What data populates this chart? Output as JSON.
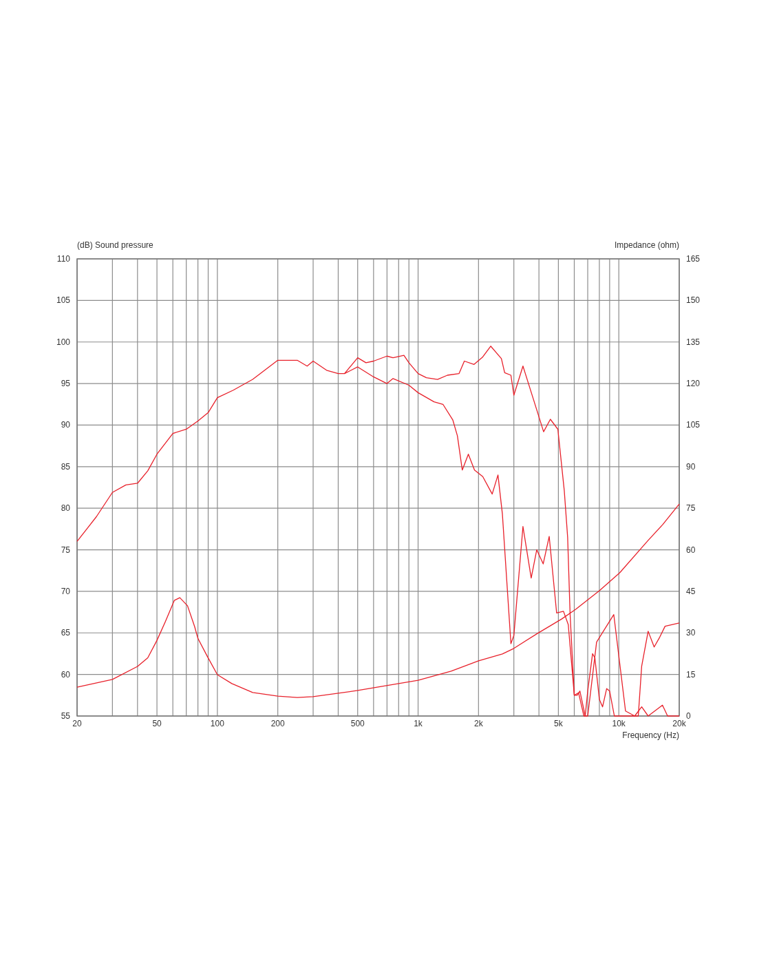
{
  "chart_data": {
    "type": "line",
    "xlabel": "Frequency  (Hz)",
    "ylabel": "(dB)  Sound pressure",
    "y2label": "Impedance  (ohm)",
    "log": "x",
    "grid": true,
    "marker": "none",
    "line_style": "solid",
    "xlim": [
      20,
      20000
    ],
    "ylim": [
      55,
      110
    ],
    "y2lim": [
      0,
      165
    ],
    "xticks": [
      20,
      {
        "value": 30,
        "label": null
      },
      {
        "value": 40,
        "label": null
      },
      50,
      {
        "value": 60,
        "label": null
      },
      {
        "value": 70,
        "label": null
      },
      {
        "value": 80,
        "label": null
      },
      {
        "value": 90,
        "label": null
      },
      100,
      200,
      {
        "value": 300,
        "label": null
      },
      {
        "value": 400,
        "label": null
      },
      500,
      {
        "value": 600,
        "label": null
      },
      {
        "value": 700,
        "label": null
      },
      {
        "value": 800,
        "label": null
      },
      {
        "value": 900,
        "label": null
      },
      {
        "value": 1000,
        "label": "1k"
      },
      {
        "value": 2000,
        "label": "2k"
      },
      {
        "value": 3000,
        "label": null
      },
      {
        "value": 4000,
        "label": null
      },
      {
        "value": 5000,
        "label": "5k"
      },
      {
        "value": 6000,
        "label": null
      },
      {
        "value": 7000,
        "label": null
      },
      {
        "value": 8000,
        "label": null
      },
      {
        "value": 9000,
        "label": null
      },
      {
        "value": 10000,
        "label": "10k"
      },
      {
        "value": 20000,
        "label": "20k"
      }
    ],
    "yticks": [
      55,
      60,
      65,
      70,
      75,
      80,
      85,
      90,
      95,
      100,
      105,
      110
    ],
    "y2ticks": [
      0,
      15,
      30,
      45,
      60,
      75,
      90,
      105,
      120,
      135,
      150,
      165
    ],
    "series": [
      {
        "color": "#e8202a",
        "x": [
          20,
          25,
          30,
          35,
          40,
          45,
          50,
          60,
          70,
          80,
          90,
          100,
          120,
          150,
          200,
          250,
          280,
          300,
          350,
          400,
          430,
          500,
          550,
          600,
          700,
          750,
          850,
          900,
          1000,
          1100,
          1250,
          1400,
          1600,
          1700,
          1900,
          2100,
          2300,
          2600,
          2700,
          2900,
          3000,
          3330,
          3870,
          4220,
          4560,
          4970,
          5350,
          5560,
          5720,
          6000,
          6200,
          6400,
          6800,
          7000,
          7400,
          7600,
          8000,
          8300,
          8700,
          9000,
          9500,
          12500,
          13000,
          14000,
          15000,
          16000,
          17000,
          20000
        ],
        "values": [
          76,
          79,
          81.9,
          82.8,
          83,
          84.5,
          86.5,
          89,
          89.5,
          90.5,
          91.5,
          93.3,
          94.2,
          95.5,
          97.8,
          97.8,
          97.1,
          97.7,
          96.6,
          96.2,
          96.2,
          98.1,
          97.5,
          97.7,
          98.3,
          98.1,
          98.4,
          97.5,
          96.2,
          95.7,
          95.5,
          96,
          96.2,
          97.7,
          97.3,
          98.2,
          99.5,
          98,
          96.3,
          96,
          93.6,
          97.1,
          92.1,
          89.2,
          90.7,
          89.5,
          82.1,
          76.5,
          67.2,
          57.5,
          57.5,
          58,
          55,
          58,
          62.5,
          62,
          57,
          56.1,
          58.3,
          58,
          55,
          55,
          61,
          65.2,
          63.3,
          64.5,
          65.8,
          66.2
        ]
      },
      {
        "color": "#e8202a",
        "x": [
          430,
          500,
          600,
          700,
          750,
          900,
          1000,
          1200,
          1330,
          1490,
          1570,
          1660,
          1780,
          1910,
          2100,
          2340,
          2500,
          2630,
          2900,
          3000,
          3330,
          3660,
          3900,
          4200,
          4500,
          4900,
          5300,
          5600,
          6000,
          6300,
          6700,
          7000,
          7750,
          9440,
          10800,
          12000,
          13000,
          14000,
          16500,
          17500,
          20000
        ],
        "values": [
          96.2,
          97,
          95.8,
          95,
          95.6,
          94.8,
          93.9,
          92.8,
          92.5,
          90.6,
          88.7,
          84.6,
          86.5,
          84.6,
          83.8,
          81.7,
          84,
          79.3,
          63.7,
          64.7,
          77.8,
          71.6,
          75,
          73.3,
          76.6,
          67.4,
          67.6,
          66,
          57.5,
          57.8,
          55,
          55,
          63.9,
          67.2,
          55.6,
          55,
          56.1,
          55,
          56.3,
          55,
          55
        ]
      },
      {
        "color": "#e8202a",
        "axis": "y2",
        "x": [
          20,
          30,
          40,
          45,
          50,
          55,
          61,
          65,
          71,
          77,
          80,
          89,
          100,
          118,
          150,
          200,
          250,
          300,
          500,
          1000,
          1460,
          2000,
          2630,
          3000,
          3930,
          5190,
          6100,
          8000,
          10100,
          14000,
          16500,
          20000
        ],
        "values": [
          10.4,
          13.2,
          17.9,
          21,
          27.3,
          34,
          41.7,
          42.7,
          39.8,
          32.3,
          28,
          21.6,
          14.9,
          11.7,
          8.5,
          7.2,
          6.7,
          7,
          9.2,
          12.9,
          16.2,
          19.9,
          22.4,
          24.4,
          29.8,
          35,
          38.5,
          45.2,
          51.7,
          63.4,
          69,
          76.5
        ]
      }
    ]
  }
}
